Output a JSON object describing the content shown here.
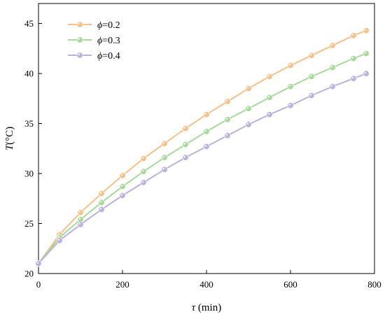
{
  "chart_data": {
    "type": "line",
    "xlabel_symbol": "τ",
    "xlabel_unit": " (min)",
    "ylabel_symbol": "T",
    "ylabel_unit": "(°C)",
    "xlim": [
      0,
      800
    ],
    "ylim": [
      20,
      47
    ],
    "xticks": [
      0,
      200,
      400,
      600,
      800
    ],
    "yticks": [
      20,
      25,
      30,
      35,
      40,
      45
    ],
    "grid": false,
    "legend_position": "top-left",
    "legend_prefix": "ϕ",
    "x": [
      0,
      50,
      100,
      150,
      200,
      250,
      300,
      350,
      400,
      450,
      500,
      550,
      600,
      650,
      700,
      750,
      780
    ],
    "series": [
      {
        "name": "=0.2",
        "color": "#f6c08a",
        "values": [
          21.0,
          23.9,
          26.1,
          28.0,
          29.8,
          31.5,
          33.0,
          34.5,
          35.9,
          37.2,
          38.5,
          39.7,
          40.8,
          41.8,
          42.8,
          43.8,
          44.3
        ]
      },
      {
        "name": "=0.3",
        "color": "#a6d99a",
        "values": [
          21.0,
          23.6,
          25.4,
          27.1,
          28.7,
          30.2,
          31.6,
          32.9,
          34.2,
          35.4,
          36.5,
          37.6,
          38.7,
          39.7,
          40.6,
          41.5,
          42.0
        ]
      },
      {
        "name": "=0.4",
        "color": "#bdb0dc",
        "values": [
          21.0,
          23.3,
          24.9,
          26.4,
          27.8,
          29.1,
          30.4,
          31.6,
          32.7,
          33.8,
          34.9,
          35.9,
          36.8,
          37.8,
          38.7,
          39.5,
          40.0
        ]
      }
    ]
  }
}
